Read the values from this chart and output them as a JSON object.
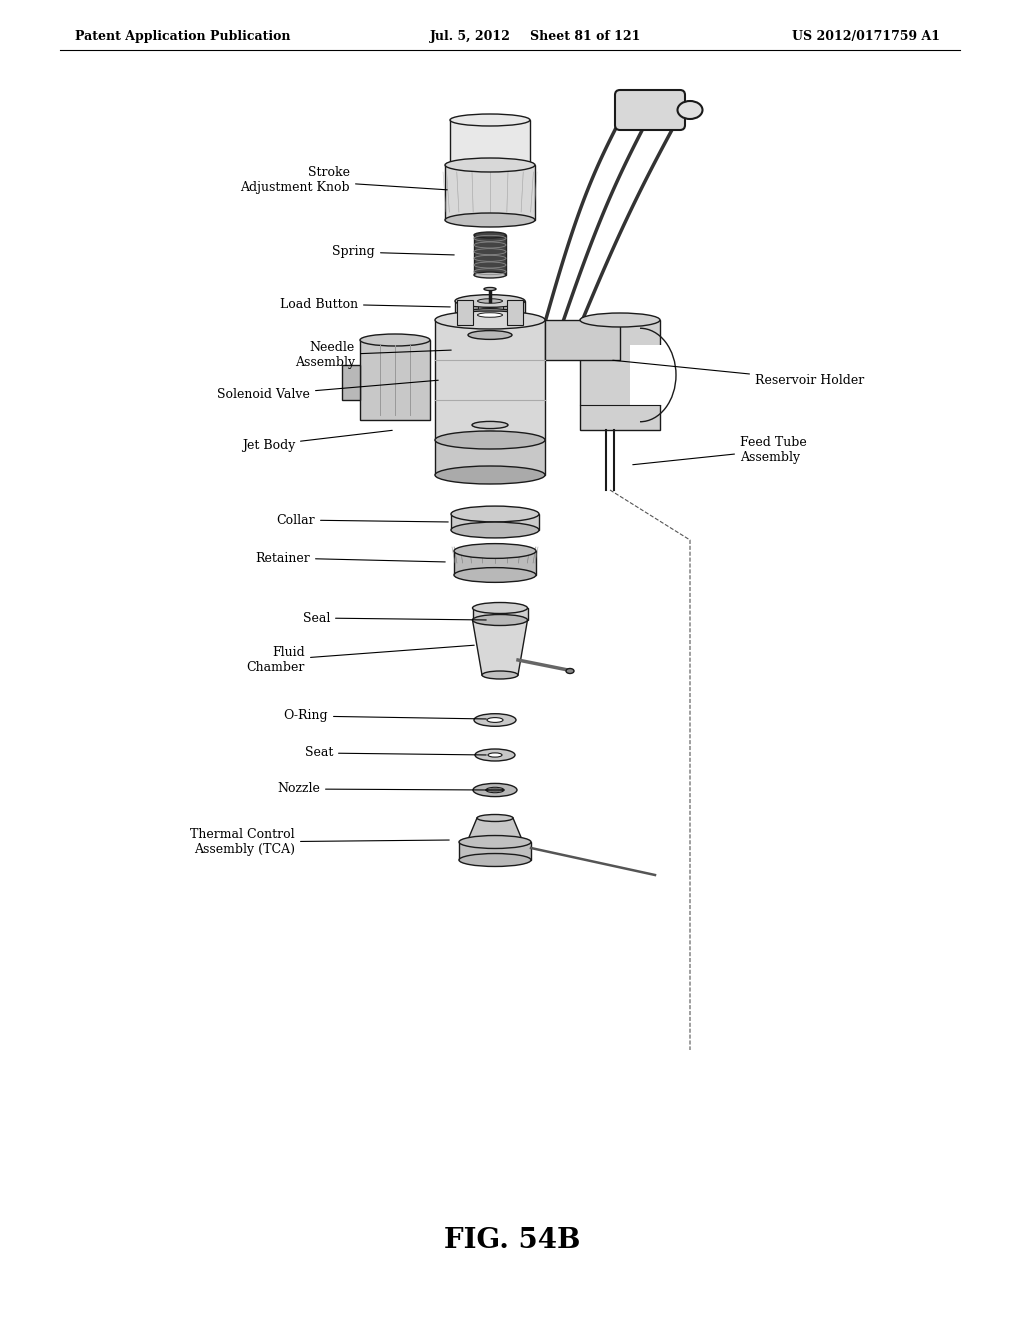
{
  "header_left": "Patent Application Publication",
  "header_center": "Jul. 5, 2012",
  "header_center2": "Sheet 81 of 121",
  "header_right": "US 2012/0171759 A1",
  "footer_label": "FIG. 54B",
  "background_color": "#ffffff",
  "text_color": "#000000",
  "line_color": "#1a1a1a",
  "gray_light": "#e8e8e8",
  "gray_mid": "#cccccc",
  "gray_dark": "#999999"
}
